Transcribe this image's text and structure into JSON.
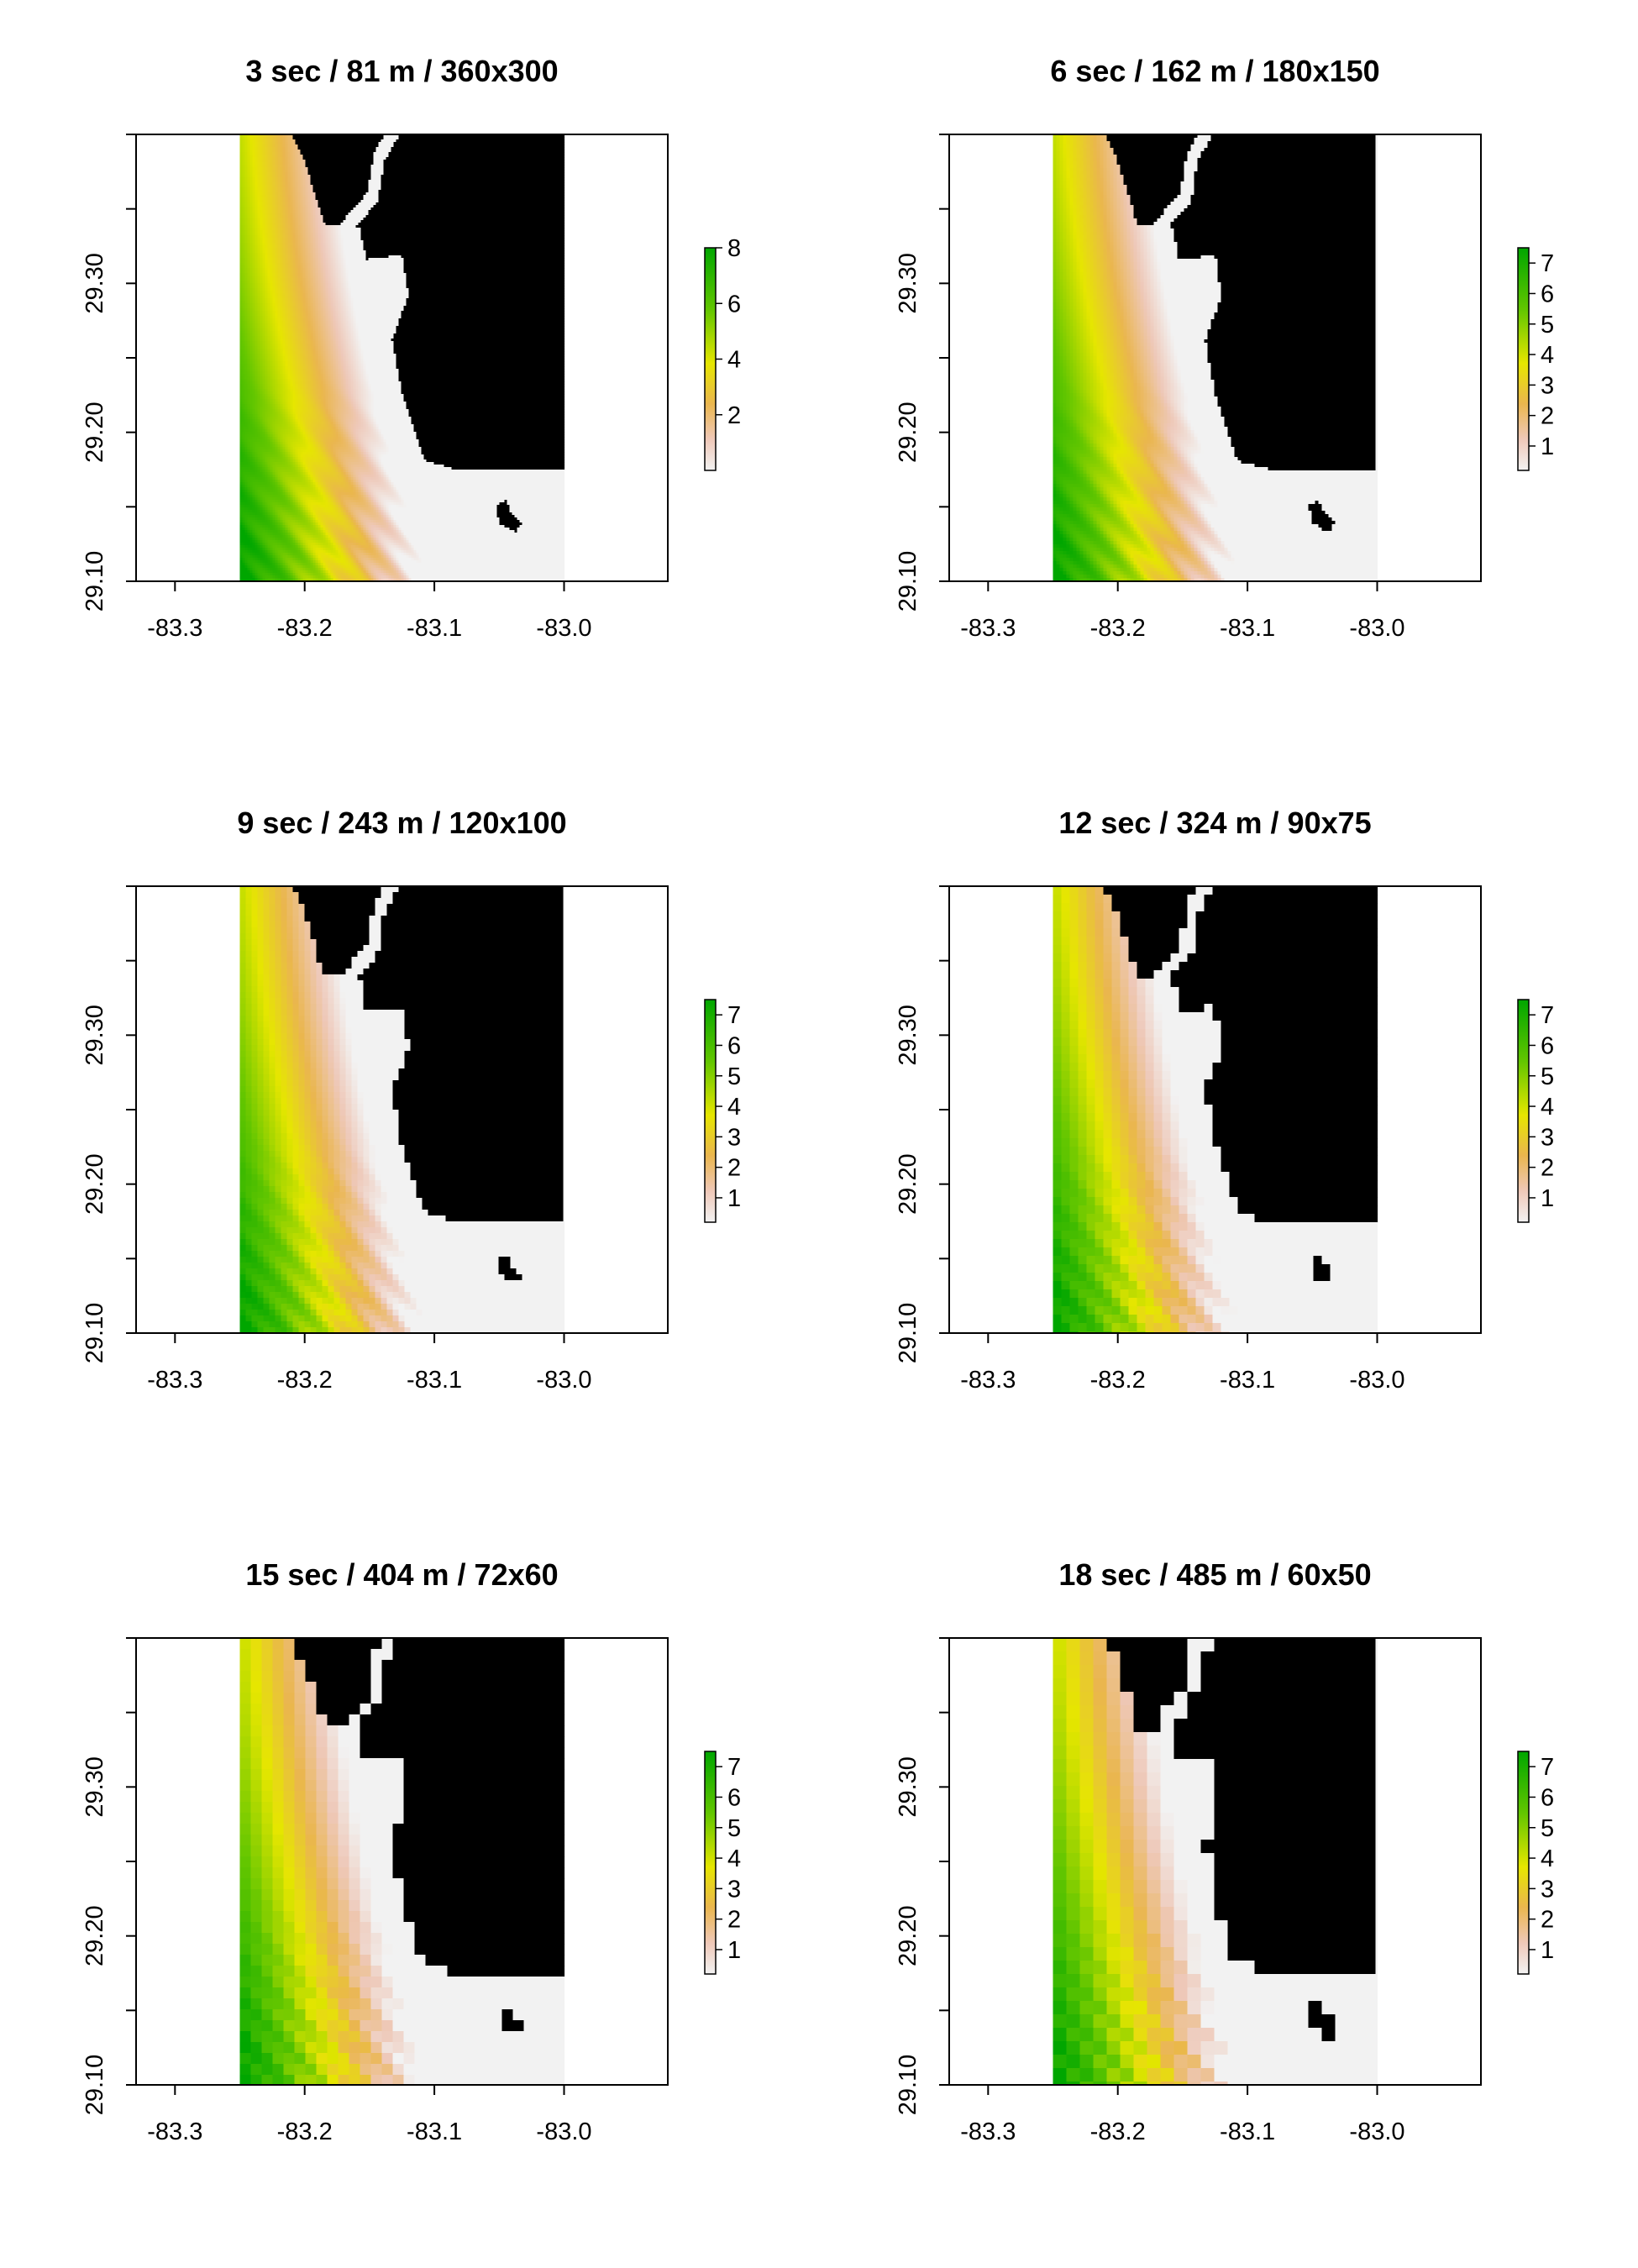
{
  "colors": {
    "background": "#ffffff",
    "frame": "#000000",
    "land": "#000000",
    "water_zero": "#f2f2f2",
    "scale": [
      "#f2f2f2",
      "#eeb99f",
      "#eab64e",
      "#e6e600",
      "#63c600",
      "#00a600"
    ]
  },
  "chart_data": [
    {
      "type": "heatmap",
      "title": "3 sec / 81 m / 360x300",
      "xlim": [
        -83.33,
        -82.92
      ],
      "ylim": [
        29.1,
        29.4
      ],
      "x_ticks": [
        "-83.3",
        "-83.2",
        "-83.1",
        "-83.0"
      ],
      "y_ticks": [
        "29.10",
        "29.20",
        "29.30"
      ],
      "raster_x_range": [
        -83.25,
        -83.0
      ],
      "legend_range": [
        0,
        8
      ],
      "legend_labels": [
        "8",
        "6",
        "4",
        "2"
      ],
      "legend_values": [
        8,
        6,
        4,
        2
      ],
      "legend_placement": "right",
      "grid": 0.5
    },
    {
      "type": "heatmap",
      "title": "6 sec / 162 m / 180x150",
      "xlim": [
        -83.33,
        -82.92
      ],
      "ylim": [
        29.1,
        29.4
      ],
      "x_ticks": [
        "-83.3",
        "-83.2",
        "-83.1",
        "-83.0"
      ],
      "y_ticks": [
        "29.10",
        "29.20",
        "29.30"
      ],
      "raster_x_range": [
        -83.25,
        -83.0
      ],
      "legend_range": [
        0.2,
        7.5
      ],
      "legend_labels": [
        "7",
        "6",
        "5",
        "4",
        "3",
        "2",
        "1"
      ],
      "legend_values": [
        7,
        6,
        5,
        4,
        3,
        2,
        1
      ],
      "legend_placement": "right",
      "grid": 1.0
    },
    {
      "type": "heatmap",
      "title": "9 sec / 243 m / 120x100",
      "xlim": [
        -83.33,
        -82.92
      ],
      "ylim": [
        29.1,
        29.4
      ],
      "x_ticks": [
        "-83.3",
        "-83.2",
        "-83.1",
        "-83.0"
      ],
      "y_ticks": [
        "29.10",
        "29.20",
        "29.30"
      ],
      "raster_x_range": [
        -83.25,
        -83.0
      ],
      "legend_range": [
        0.2,
        7.5
      ],
      "legend_labels": [
        "7",
        "6",
        "5",
        "4",
        "3",
        "2",
        "1"
      ],
      "legend_values": [
        7,
        6,
        5,
        4,
        3,
        2,
        1
      ],
      "legend_placement": "right",
      "grid": 2.0
    },
    {
      "type": "heatmap",
      "title": "12 sec / 324 m / 90x75",
      "xlim": [
        -83.33,
        -82.92
      ],
      "ylim": [
        29.1,
        29.4
      ],
      "x_ticks": [
        "-83.3",
        "-83.2",
        "-83.1",
        "-83.0"
      ],
      "y_ticks": [
        "29.10",
        "29.20",
        "29.30"
      ],
      "raster_x_range": [
        -83.25,
        -83.0
      ],
      "legend_range": [
        0.2,
        7.5
      ],
      "legend_labels": [
        "7",
        "6",
        "5",
        "4",
        "3",
        "2",
        "1"
      ],
      "legend_values": [
        7,
        6,
        5,
        4,
        3,
        2,
        1
      ],
      "legend_placement": "right",
      "grid": 3.0
    },
    {
      "type": "heatmap",
      "title": "15 sec / 404 m / 72x60",
      "xlim": [
        -83.33,
        -82.92
      ],
      "ylim": [
        29.1,
        29.4
      ],
      "x_ticks": [
        "-83.3",
        "-83.2",
        "-83.1",
        "-83.0"
      ],
      "y_ticks": [
        "29.10",
        "29.20",
        "29.30"
      ],
      "raster_x_range": [
        -83.25,
        -83.0
      ],
      "legend_range": [
        0.2,
        7.5
      ],
      "legend_labels": [
        "7",
        "6",
        "5",
        "4",
        "3",
        "2",
        "1"
      ],
      "legend_values": [
        7,
        6,
        5,
        4,
        3,
        2,
        1
      ],
      "legend_placement": "right",
      "grid": 4.0
    },
    {
      "type": "heatmap",
      "title": "18 sec / 485 m / 60x50",
      "xlim": [
        -83.33,
        -82.92
      ],
      "ylim": [
        29.1,
        29.4
      ],
      "x_ticks": [
        "-83.3",
        "-83.2",
        "-83.1",
        "-83.0"
      ],
      "y_ticks": [
        "29.10",
        "29.20",
        "29.30"
      ],
      "raster_x_range": [
        -83.25,
        -83.0
      ],
      "legend_range": [
        0.2,
        7.5
      ],
      "legend_labels": [
        "7",
        "6",
        "5",
        "4",
        "3",
        "2",
        "1"
      ],
      "legend_values": [
        7,
        6,
        5,
        4,
        3,
        2,
        1
      ],
      "legend_placement": "right",
      "grid": 5.0
    }
  ]
}
